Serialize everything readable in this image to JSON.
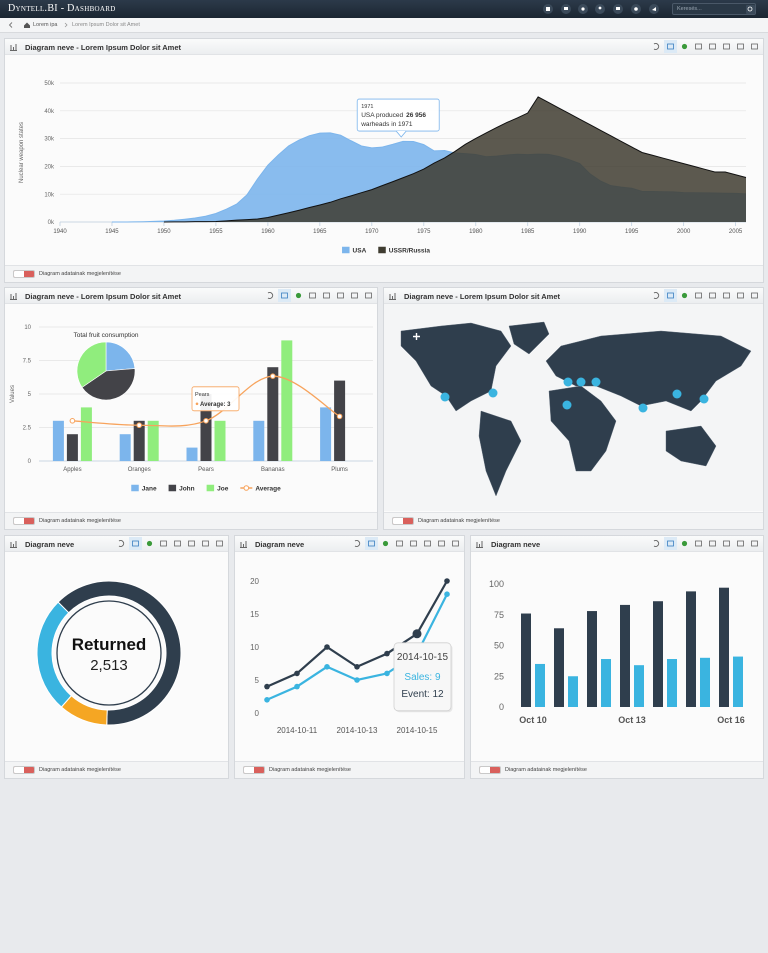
{
  "header": {
    "brand": "Dyntell.BI - Dashboard",
    "search_placeholder": "Keresés..."
  },
  "breadcrumb": [
    "Lorem ipa",
    "Lorem Ipsum Dolor sit Amet"
  ],
  "panels": [
    {
      "title": "Diagram neve - Lorem Ipsum Dolor sit Amet",
      "footer": "Diagram adatainak megjelenítése"
    },
    {
      "title": "Diagram neve - Lorem Ipsum Dolor sit Amet",
      "footer": "Diagram adatainak megjelenítése"
    },
    {
      "title": "Diagram neve - Lorem Ipsum Dolor sit Amet",
      "footer": "Diagram adatainak megjelenítése"
    },
    {
      "title": "Diagram neve",
      "footer": "Diagram adatainak megjelenítése"
    },
    {
      "title": "Diagram neve",
      "footer": "Diagram adatainak megjelenítése"
    },
    {
      "title": "Diagram neve",
      "footer": "Diagram adatainak megjelenítése"
    }
  ],
  "chart_data": [
    {
      "type": "area",
      "y_label": "Nuclear weapon states",
      "x": [
        1940,
        1941,
        1942,
        1943,
        1944,
        1945,
        1946,
        1947,
        1948,
        1949,
        1950,
        1951,
        1952,
        1953,
        1954,
        1955,
        1956,
        1957,
        1958,
        1959,
        1960,
        1961,
        1962,
        1963,
        1964,
        1965,
        1966,
        1967,
        1968,
        1969,
        1970,
        1971,
        1972,
        1973,
        1974,
        1975,
        1976,
        1977,
        1978,
        1979,
        1980,
        1981,
        1982,
        1983,
        1984,
        1985,
        1986,
        1987,
        1988,
        1989,
        1990,
        1991,
        1992,
        1993,
        1994,
        1995,
        1996,
        1997,
        1998,
        1999,
        2000,
        2001,
        2002,
        2003,
        2004,
        2005,
        2006
      ],
      "xlim": [
        1940,
        2006
      ],
      "xticks": [
        1940,
        1945,
        1950,
        1955,
        1960,
        1965,
        1970,
        1975,
        1980,
        1985,
        1990,
        1995,
        2000,
        2005
      ],
      "ylim": [
        0,
        50000
      ],
      "yticks": [
        {
          "value": 0,
          "label": "0k"
        },
        {
          "value": 10000,
          "label": "10k"
        },
        {
          "value": 20000,
          "label": "20k"
        },
        {
          "value": 30000,
          "label": "30k"
        },
        {
          "value": 40000,
          "label": "40k"
        },
        {
          "value": 50000,
          "label": "50k"
        }
      ],
      "grid": true,
      "series": [
        {
          "name": "USA",
          "color": "#7cb5ec",
          "values": [
            null,
            null,
            null,
            null,
            null,
            6,
            11,
            32,
            110,
            235,
            369,
            640,
            1005,
            1436,
            2063,
            3057,
            4618,
            6444,
            9822,
            15468,
            20434,
            24126,
            27387,
            29459,
            31056,
            31982,
            32040,
            31233,
            29224,
            27342,
            26662,
            26956,
            27912,
            28999,
            28965,
            27826,
            25579,
            25722,
            24826,
            24605,
            24304,
            23464,
            23708,
            24099,
            24357,
            24237,
            24401,
            24344,
            23586,
            22380,
            21004,
            17287,
            14747,
            13076,
            12555,
            12144,
            11009,
            10950,
            10871,
            10824,
            10577,
            10527,
            10475,
            10421,
            10358,
            10295,
            10104
          ]
        },
        {
          "name": "USSR/Russia",
          "color": "#3f3c30",
          "values": [
            null,
            null,
            null,
            null,
            null,
            null,
            null,
            null,
            null,
            null,
            5,
            25,
            50,
            120,
            150,
            200,
            426,
            660,
            869,
            1060,
            1605,
            2471,
            3322,
            4238,
            5221,
            6129,
            7089,
            8339,
            9399,
            10538,
            11643,
            13092,
            14478,
            15915,
            17385,
            19055,
            21205,
            23044,
            25393,
            27935,
            30062,
            32049,
            33952,
            35804,
            37431,
            39197,
            45000,
            43000,
            41000,
            39000,
            37000,
            35000,
            33000,
            31000,
            29000,
            27000,
            25000,
            24000,
            23000,
            22000,
            21000,
            20000,
            19000,
            18000,
            18000,
            17000,
            16000
          ]
        }
      ],
      "tooltip": {
        "title": "1971",
        "prefix": "USA produced",
        "value": 26956,
        "value_label": "26 956",
        "suffix": "warheads in 1971"
      }
    },
    {
      "type": "bar",
      "y_label": "Values",
      "categories": [
        "Apples",
        "Oranges",
        "Pears",
        "Bananas",
        "Plums"
      ],
      "ylim": [
        0,
        10
      ],
      "yticks": [
        0,
        2.5,
        5,
        7.5,
        10
      ],
      "grid": true,
      "series": [
        {
          "name": "Jane",
          "color": "#7cb5ec",
          "values": [
            3,
            2,
            1,
            3,
            4
          ]
        },
        {
          "name": "John",
          "color": "#434348",
          "values": [
            2,
            3,
            5,
            7,
            6
          ]
        },
        {
          "name": "Joe",
          "color": "#90ed7d",
          "values": [
            4,
            3,
            3,
            9,
            0
          ]
        },
        {
          "name": "Average",
          "type": "line",
          "color": "#f7a35c",
          "values": [
            3,
            2.67,
            3,
            6.33,
            3.33
          ]
        }
      ],
      "pie": {
        "title": "Total fruit consumption",
        "values": [
          13,
          23,
          19
        ]
      },
      "tooltip": {
        "title": "Pears",
        "items": [
          "Average: 3"
        ]
      }
    },
    {
      "type": "pie",
      "donut": true,
      "values": [
        63,
        11,
        26
      ],
      "colors": [
        "#2f3e4d",
        "#f5a623",
        "#3ab4e0"
      ],
      "center_title": "Returned",
      "center_value": {
        "value": 2513,
        "label": "2,513"
      }
    },
    {
      "type": "line",
      "x": [
        "2014-10-10",
        "2014-10-11",
        "2014-10-12",
        "2014-10-13",
        "2014-10-14",
        "2014-10-15",
        "2014-10-16"
      ],
      "xticks": [
        "2014-10-11",
        "2014-10-13",
        "2014-10-15"
      ],
      "ylim": [
        0,
        20
      ],
      "yticks": [
        0,
        5,
        10,
        15,
        20
      ],
      "series": [
        {
          "name": "Event",
          "color": "#2f3e4d",
          "values": [
            4,
            6,
            10,
            7,
            9,
            12,
            20
          ]
        },
        {
          "name": "Sales",
          "color": "#3ab4e0",
          "values": [
            2,
            4,
            7,
            5,
            6,
            9,
            18
          ]
        }
      ],
      "tooltip": {
        "title": "2014-10-15",
        "items": [
          "Sales: 9",
          "Event: 12"
        ]
      }
    },
    {
      "type": "bar",
      "categories": [
        "Oct 10",
        null,
        null,
        "Oct 13",
        null,
        null,
        "Oct 16"
      ],
      "ylim": [
        0,
        100
      ],
      "yticks": [
        0,
        25,
        50,
        75,
        100
      ],
      "grid": false,
      "series": [
        {
          "color": "#2f3e4d",
          "values": [
            76,
            64,
            78,
            83,
            86,
            94,
            97
          ]
        },
        {
          "color": "#3ab4e0",
          "values": [
            35,
            25,
            39,
            34,
            39,
            40,
            41
          ]
        }
      ]
    }
  ]
}
